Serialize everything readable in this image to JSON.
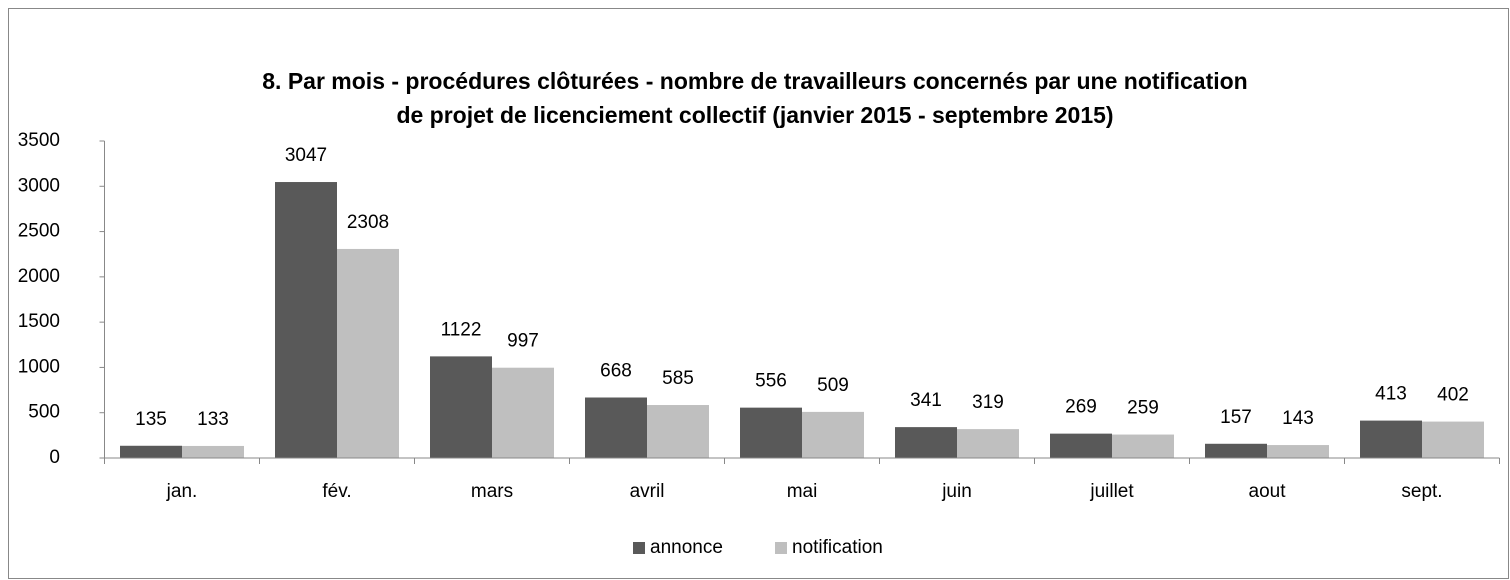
{
  "chart_data": {
    "type": "bar",
    "title": [
      "8. Par mois - procédures clôturées - nombre de travailleurs concernés par une notification",
      "de projet de licenciement collectif (janvier 2015 - septembre 2015)"
    ],
    "categories": [
      "jan.",
      "fév.",
      "mars",
      "avril",
      "mai",
      "juin",
      "juillet",
      "aout",
      "sept."
    ],
    "series": [
      {
        "name": "annonce",
        "color": "#595959",
        "values": [
          135,
          3047,
          1122,
          668,
          556,
          341,
          269,
          157,
          413
        ]
      },
      {
        "name": "notification",
        "color": "#bfbfbf",
        "values": [
          133,
          2308,
          997,
          585,
          509,
          319,
          259,
          143,
          402
        ]
      }
    ],
    "ylim": [
      0,
      3500
    ],
    "yticks": [
      0,
      500,
      1000,
      1500,
      2000,
      2500,
      3000,
      3500
    ],
    "legend": "bottom"
  }
}
